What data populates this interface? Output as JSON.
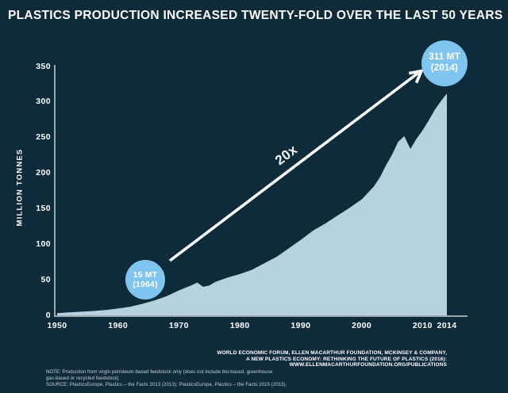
{
  "title": "PLASTICS PRODUCTION INCREASED TWENTY-FOLD OVER THE LAST 50 YEARS",
  "colors": {
    "background": "#0E2B3C",
    "area_fill": "#B5D3DD",
    "bubble_fill": "#7EC5F0",
    "axis_line": "#9AAAB2",
    "text_primary": "#FFFFFF",
    "text_muted": "#C6D2D9"
  },
  "chart_data": {
    "type": "area",
    "title": "PLASTICS PRODUCTION INCREASED TWENTY-FOLD OVER THE LAST 50 YEARS",
    "xlabel": "",
    "ylabel": "MILLION TONNES",
    "xlim": [
      1950,
      2014
    ],
    "ylim": [
      0,
      350
    ],
    "y_ticks": [
      0,
      50,
      100,
      150,
      200,
      250,
      300,
      350
    ],
    "x_ticks": [
      1950,
      1960,
      1970,
      1980,
      1990,
      2000,
      2010,
      2014
    ],
    "grid": false,
    "legend": false,
    "x": [
      1950,
      1952,
      1954,
      1956,
      1958,
      1960,
      1962,
      1964,
      1966,
      1968,
      1970,
      1972,
      1973,
      1974,
      1975,
      1976,
      1978,
      1980,
      1982,
      1984,
      1986,
      1988,
      1990,
      1992,
      1994,
      1996,
      1998,
      2000,
      2002,
      2003,
      2004,
      2005,
      2006,
      2007,
      2008,
      2009,
      2010,
      2011,
      2012,
      2013,
      2014
    ],
    "series": [
      {
        "name": "Global plastics production (million tonnes)",
        "values": [
          2,
          3,
          4,
          5,
          6.5,
          8.5,
          11,
          15,
          20,
          26,
          34,
          41,
          45,
          39,
          41,
          46,
          52,
          57,
          63,
          72,
          81,
          93,
          105,
          118,
          128,
          139,
          150,
          162,
          180,
          193,
          210,
          225,
          243,
          251,
          233,
          247,
          259,
          273,
          288,
          300,
          311
        ]
      }
    ],
    "annotations": {
      "start": {
        "line1": "15 MT",
        "line2": "(1964)",
        "year": 1964,
        "value": 15
      },
      "end": {
        "line1": "311 MT",
        "line2": "(2014)",
        "year": 2014,
        "value": 311
      },
      "arrow_label": "20x"
    }
  },
  "footer": {
    "source_right": [
      "WORLD ECONOMIC FORUM, ELLEN MACARTHUR FOUNDATION, MCKINSEY & COMPANY,",
      "A NEW PLASTICS ECONOMY: RETHINKING THE FUTURE OF PLASTICS (2016):",
      "WWW.ELLENMACARTHURFOUNDATION.ORG/PUBLICATIONS"
    ],
    "note_left": [
      "NOTE: Production from virgin petroleum-based feedstock only (does not include bio-based, greenhouse",
      "gas-based or recycled feedstock)",
      "SOURCE: PlasticsEurope, Plastics – the Facts 2013 (2013); PlasticsEurope, Plastics – the Facts 2015 (2015)."
    ]
  }
}
